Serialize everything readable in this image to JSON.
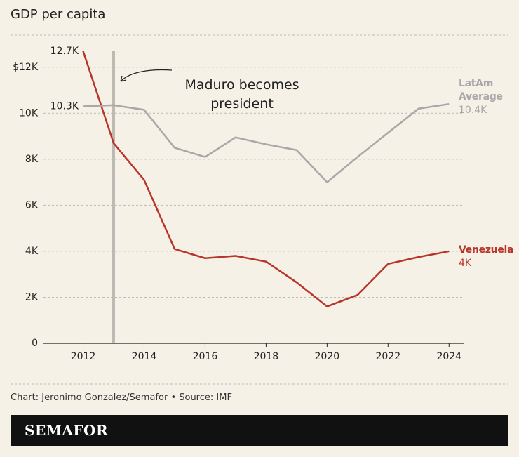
{
  "chart_data": {
    "type": "line",
    "title": "GDP per capita",
    "x": [
      2012,
      2013,
      2014,
      2015,
      2016,
      2017,
      2018,
      2019,
      2020,
      2021,
      2022,
      2023,
      2024
    ],
    "series": [
      {
        "name": "Venezuela",
        "color": "#b8352a",
        "values": [
          12700,
          8700,
          7100,
          4100,
          3700,
          3800,
          3550,
          2650,
          1600,
          2100,
          3450,
          3750,
          4000
        ],
        "value_labels": [
          "12.7K",
          null,
          null,
          null,
          null,
          null,
          null,
          null,
          null,
          null,
          null,
          null,
          "4K"
        ]
      },
      {
        "name": "LatAm Average",
        "color": "#a8a8a8",
        "values": [
          10300,
          10350,
          10150,
          8500,
          8100,
          8950,
          8650,
          8400,
          7000,
          8100,
          9150,
          10200,
          10400
        ],
        "value_labels": [
          "10.3K",
          null,
          null,
          null,
          null,
          null,
          null,
          null,
          null,
          null,
          null,
          null,
          "10.4K"
        ]
      }
    ],
    "xlim": [
      2010.7,
      2024.5
    ],
    "xticks": [
      2012,
      2014,
      2016,
      2018,
      2020,
      2022,
      2024
    ],
    "ylim": [
      0,
      13000
    ],
    "yticks": [
      0,
      {
        "value": 2000,
        "label": "2K"
      },
      {
        "value": 4000,
        "label": "4K"
      },
      {
        "value": 6000,
        "label": "6K"
      },
      {
        "value": 8000,
        "label": "8K"
      },
      {
        "value": 10000,
        "label": "10K"
      },
      {
        "value": 12000,
        "label": "$12K"
      }
    ],
    "grid": true,
    "annotation": {
      "x": 2013,
      "text": "Maduro becomes president"
    },
    "source": "Chart: Jeronimo Gonzalez/Semafor • Source: IMF",
    "logo": "SEMAFOR"
  }
}
